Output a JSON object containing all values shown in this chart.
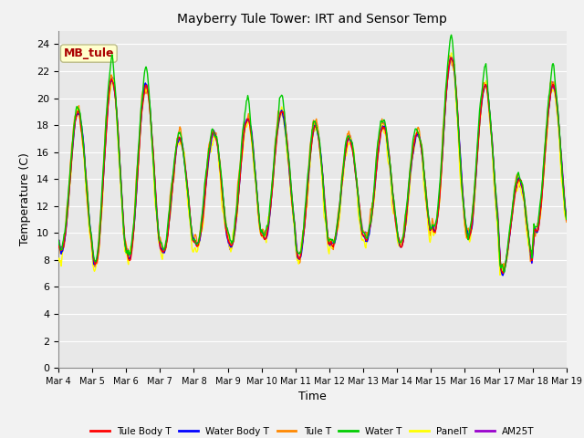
{
  "title": "Mayberry Tule Tower: IRT and Sensor Temp",
  "xlabel": "Time",
  "ylabel": "Temperature (C)",
  "ylim": [
    0,
    25
  ],
  "yticks": [
    0,
    2,
    4,
    6,
    8,
    10,
    12,
    14,
    16,
    18,
    20,
    22,
    24
  ],
  "x_tick_labels": [
    "Mar 4",
    "Mar 5",
    "Mar 6",
    "Mar 7",
    "Mar 8",
    "Mar 9",
    "Mar 10",
    "Mar 11",
    "Mar 12",
    "Mar 13",
    "Mar 14",
    "Mar 15",
    "Mar 16",
    "Mar 17",
    "Mar 18",
    "Mar 19"
  ],
  "series_colors": {
    "Tule Body T": "#ff0000",
    "Water Body T": "#0000ff",
    "Tule T": "#ff8800",
    "Water T": "#00cc00",
    "PanelT": "#ffff00",
    "AM25T": "#9900cc"
  },
  "legend_label": "MB_tule",
  "legend_text_color": "#aa0000",
  "legend_bg": "#ffffcc",
  "legend_border": "#bbbb88",
  "bg_color": "#e8e8e8",
  "grid_color": "#ffffff",
  "linewidth": 1.0,
  "fig_width": 6.4,
  "fig_height": 4.8,
  "dpi": 100
}
